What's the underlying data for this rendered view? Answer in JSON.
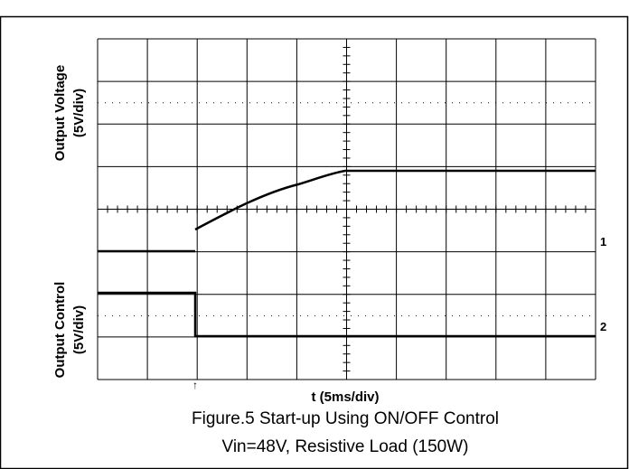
{
  "figure": {
    "y_labels": [
      {
        "name": "Output Voltage",
        "scale": "(5V/div)"
      },
      {
        "name": "Output Control",
        "scale": "(5V/div)"
      }
    ],
    "x_label": "t (5ms/div)",
    "channel_markers": [
      "1",
      "2"
    ],
    "caption": [
      "Figure.5 Start-up Using ON/OFF Control",
      "Vin=48V, Resistive Load (150W)"
    ]
  }
}
